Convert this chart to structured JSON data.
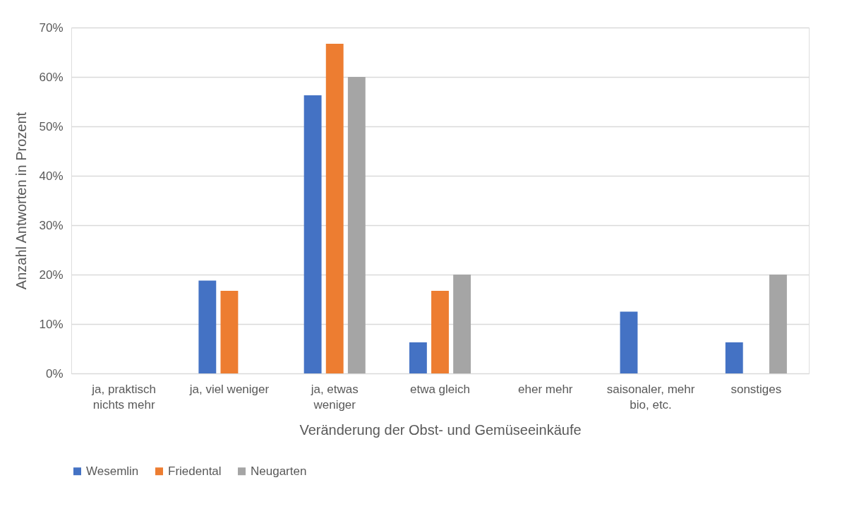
{
  "chart_data": {
    "type": "bar",
    "xlabel": "Veränderung der Obst- und Gemüseeinkäufe",
    "ylabel": "Anzahl Antworten in Prozent",
    "categories": [
      "ja, praktisch nichts mehr",
      "ja, viel weniger",
      "ja, etwas weniger",
      "etwa gleich",
      "eher mehr",
      "saisonaler, mehr bio, etc.",
      "sonstiges"
    ],
    "series": [
      {
        "name": "Wesemlin",
        "color": "#4472c4",
        "values": [
          0,
          18.8,
          56.3,
          6.3,
          0,
          12.5,
          6.3
        ]
      },
      {
        "name": "Friedental",
        "color": "#ed7d31",
        "values": [
          0,
          16.7,
          66.7,
          16.7,
          0,
          0,
          0
        ]
      },
      {
        "name": "Neugarten",
        "color": "#a5a5a5",
        "values": [
          0,
          0,
          60,
          20,
          0,
          0,
          20
        ]
      }
    ],
    "ylim": [
      0,
      70
    ],
    "yticks": [
      {
        "value": 0,
        "label": "0%"
      },
      {
        "value": 10,
        "label": "10%"
      },
      {
        "value": 20,
        "label": "20%"
      },
      {
        "value": 30,
        "label": "30%"
      },
      {
        "value": 40,
        "label": "40%"
      },
      {
        "value": 50,
        "label": "50%"
      },
      {
        "value": 60,
        "label": "60%"
      },
      {
        "value": 70,
        "label": "70%"
      }
    ],
    "grid": "y",
    "legend": "bottom"
  }
}
